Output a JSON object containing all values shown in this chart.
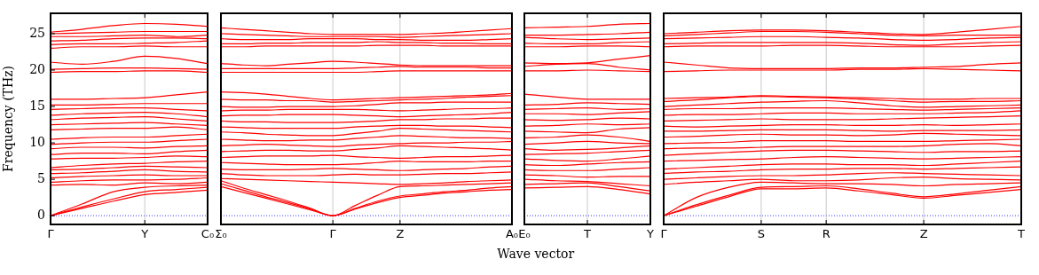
{
  "chart_data": [
    {
      "type": "line",
      "ylabel": "Frequency (THz)",
      "categories": [
        "Γ",
        null,
        null,
        "Y",
        null,
        "C₀"
      ],
      "ylim": [
        -1.2,
        27.8
      ],
      "yticks": [
        0,
        5,
        10,
        15,
        20,
        25
      ],
      "legend": false,
      "marker": "none",
      "line_style": "solid",
      "ref_lines": [
        {
          "axis": "y",
          "value": 0,
          "color": "#0000ff",
          "line_style": "dotted"
        },
        {
          "axis": "x",
          "value": "Y",
          "color": "#bbbbbb",
          "line_style": "solid"
        }
      ],
      "series": [
        {
          "color": "#ff0000",
          "values": [
            0,
            1.0,
            2.0,
            2.9,
            3.2,
            3.5
          ]
        },
        {
          "color": "#ff0000",
          "values": [
            0,
            1.2,
            2.3,
            3.3,
            3.6,
            3.9
          ]
        },
        {
          "color": "#ff0000",
          "values": [
            0,
            1.6,
            3.3,
            3.9,
            4.1,
            4.2
          ]
        },
        {
          "color": "#ff0000",
          "values": [
            4.2,
            4.3,
            4.2,
            4.5,
            4.4,
            4.6
          ]
        },
        {
          "color": "#ff0000",
          "values": [
            4.6,
            4.8,
            4.9,
            4.9,
            5.0,
            5.2
          ]
        },
        {
          "color": "#ff0000",
          "values": [
            5.2,
            5.4,
            5.5,
            5.6,
            5.5,
            5.5
          ]
        },
        {
          "color": "#ff0000",
          "values": [
            5.8,
            5.9,
            6.1,
            6.3,
            6.1,
            6.0
          ]
        },
        {
          "color": "#ff0000",
          "values": [
            6.3,
            6.4,
            6.6,
            6.8,
            6.7,
            6.6
          ]
        },
        {
          "color": "#ff0000",
          "values": [
            6.6,
            6.9,
            7.1,
            7.2,
            7.4,
            7.5
          ]
        },
        {
          "color": "#ff0000",
          "values": [
            7.8,
            7.9,
            7.9,
            8.0,
            8.2,
            8.1
          ]
        },
        {
          "color": "#ff0000",
          "values": [
            8.4,
            8.6,
            8.6,
            8.5,
            8.8,
            9.0
          ]
        },
        {
          "color": "#ff0000",
          "values": [
            9.2,
            9.4,
            9.4,
            9.3,
            9.5,
            9.6
          ]
        },
        {
          "color": "#ff0000",
          "values": [
            9.8,
            10.0,
            10.1,
            10.1,
            10.3,
            10.5
          ]
        },
        {
          "color": "#ff0000",
          "values": [
            10.5,
            10.7,
            10.8,
            10.8,
            11.0,
            11.2
          ]
        },
        {
          "color": "#ff0000",
          "values": [
            11.8,
            11.9,
            12.0,
            12.0,
            12.2,
            11.8
          ]
        },
        {
          "color": "#ff0000",
          "values": [
            12.5,
            12.6,
            12.7,
            12.8,
            12.6,
            12.4
          ]
        },
        {
          "color": "#ff0000",
          "values": [
            13.2,
            13.4,
            13.5,
            13.6,
            13.3,
            13.0
          ]
        },
        {
          "color": "#ff0000",
          "values": [
            13.8,
            14.0,
            14.1,
            14.2,
            14.0,
            13.6
          ]
        },
        {
          "color": "#ff0000",
          "values": [
            14.6,
            14.7,
            14.8,
            14.8,
            14.6,
            14.4
          ]
        },
        {
          "color": "#ff0000",
          "values": [
            15.2,
            15.2,
            15.3,
            15.4,
            15.4,
            15.4
          ]
        },
        {
          "color": "#ff0000",
          "values": [
            16.0,
            16.0,
            16.1,
            16.2,
            16.6,
            17.0
          ]
        },
        {
          "color": "#ff0000",
          "values": [
            19.7,
            19.8,
            19.8,
            19.9,
            19.9,
            19.7
          ]
        },
        {
          "color": "#ff0000",
          "values": [
            20.1,
            20.2,
            20.3,
            20.3,
            20.2,
            20.1
          ]
        },
        {
          "color": "#ff0000",
          "values": [
            21.1,
            20.8,
            21.2,
            21.9,
            21.6,
            20.9
          ]
        },
        {
          "color": "#ff0000",
          "values": [
            23.0,
            23.2,
            23.2,
            23.3,
            23.2,
            23.2
          ]
        },
        {
          "color": "#ff0000",
          "values": [
            23.5,
            23.6,
            23.6,
            23.7,
            23.8,
            24.0
          ]
        },
        {
          "color": "#ff0000",
          "values": [
            24.0,
            24.1,
            24.3,
            24.4,
            24.4,
            24.3
          ]
        },
        {
          "color": "#ff0000",
          "values": [
            24.6,
            24.6,
            24.7,
            24.8,
            24.6,
            24.8
          ]
        },
        {
          "color": "#ff0000",
          "values": [
            25.0,
            25.1,
            25.2,
            25.3,
            25.3,
            25.3
          ]
        },
        {
          "color": "#ff0000",
          "values": [
            25.2,
            25.6,
            26.1,
            26.4,
            26.3,
            26.0
          ]
        }
      ]
    },
    {
      "type": "line",
      "categories": [
        "Σ₀",
        null,
        null,
        null,
        null,
        "Γ",
        null,
        null,
        "Z",
        null,
        null,
        null,
        null,
        "A₀"
      ],
      "ylim": [
        -1.2,
        27.8
      ],
      "tick_labels": "x",
      "legend": false,
      "marker": "none",
      "line_style": "solid",
      "ref_lines": [
        {
          "axis": "y",
          "value": 0,
          "color": "#0000ff",
          "line_style": "dotted"
        },
        {
          "axis": "x",
          "value": "Γ",
          "color": "#bbbbbb",
          "line_style": "solid"
        },
        {
          "axis": "x",
          "value": "Z",
          "color": "#bbbbbb",
          "line_style": "solid"
        }
      ],
      "series": [
        {
          "color": "#ff0000",
          "values": [
            4.0,
            3.2,
            2.4,
            1.6,
            0.8,
            0,
            0.9,
            1.8,
            2.5,
            2.8,
            3.1,
            3.3,
            3.5,
            3.6
          ]
        },
        {
          "color": "#ff0000",
          "values": [
            4.4,
            3.5,
            2.6,
            1.8,
            0.9,
            0,
            1.0,
            2.0,
            2.7,
            3.0,
            3.3,
            3.5,
            3.8,
            4.0
          ]
        },
        {
          "color": "#ff0000",
          "values": [
            4.8,
            3.8,
            2.9,
            2.0,
            1.0,
            0,
            1.4,
            2.8,
            4.0,
            4.1,
            4.2,
            4.3,
            4.4,
            4.5
          ]
        },
        {
          "color": "#ff0000",
          "values": [
            5.1,
            5.0,
            4.9,
            4.8,
            4.7,
            4.6,
            4.5,
            4.4,
            4.3,
            4.4,
            4.5,
            4.7,
            4.8,
            4.9
          ]
        },
        {
          "color": "#ff0000",
          "values": [
            5.8,
            5.6,
            5.5,
            5.5,
            5.5,
            5.6,
            5.7,
            5.6,
            5.6,
            5.7,
            5.8,
            5.8,
            5.9,
            6.0
          ]
        },
        {
          "color": "#ff0000",
          "values": [
            6.4,
            6.3,
            6.3,
            6.3,
            6.4,
            6.5,
            6.4,
            6.3,
            6.2,
            6.3,
            6.4,
            6.5,
            6.7,
            6.8
          ]
        },
        {
          "color": "#ff0000",
          "values": [
            7.3,
            7.2,
            7.1,
            7.0,
            7.0,
            7.0,
            7.1,
            7.3,
            7.5,
            7.4,
            7.4,
            7.4,
            7.5,
            7.5
          ]
        },
        {
          "color": "#ff0000",
          "values": [
            8.0,
            8.1,
            8.2,
            8.2,
            8.2,
            8.3,
            8.1,
            8.0,
            7.9,
            8.0,
            8.1,
            8.1,
            8.2,
            8.3
          ]
        },
        {
          "color": "#ff0000",
          "values": [
            8.8,
            8.9,
            9.0,
            9.0,
            8.9,
            8.9,
            9.1,
            9.3,
            9.6,
            9.5,
            9.4,
            9.3,
            9.2,
            9.0
          ]
        },
        {
          "color": "#ff0000",
          "values": [
            9.6,
            9.7,
            9.8,
            9.7,
            9.6,
            9.5,
            9.7,
            9.8,
            9.9,
            10.0,
            10.0,
            10.1,
            10.1,
            10.2
          ]
        },
        {
          "color": "#ff0000",
          "values": [
            10.5,
            10.4,
            10.3,
            10.3,
            10.4,
            10.4,
            10.6,
            10.8,
            11.0,
            10.9,
            10.8,
            10.7,
            10.7,
            10.6
          ]
        },
        {
          "color": "#ff0000",
          "values": [
            11.5,
            11.4,
            11.2,
            11.1,
            11.0,
            11.0,
            11.3,
            11.6,
            12.0,
            11.9,
            11.8,
            11.7,
            11.6,
            11.5
          ]
        },
        {
          "color": "#ff0000",
          "values": [
            12.2,
            12.1,
            12.0,
            12.0,
            12.0,
            12.0,
            12.2,
            12.3,
            12.4,
            12.4,
            12.3,
            12.3,
            12.2,
            12.1
          ]
        },
        {
          "color": "#ff0000",
          "values": [
            13.0,
            12.9,
            12.9,
            12.8,
            12.8,
            12.8,
            12.9,
            13.0,
            13.2,
            13.2,
            13.3,
            13.3,
            13.4,
            13.4
          ]
        },
        {
          "color": "#ff0000",
          "values": [
            13.7,
            13.8,
            13.8,
            13.9,
            13.9,
            13.9,
            13.8,
            13.7,
            13.6,
            13.7,
            13.8,
            13.9,
            14.0,
            14.2
          ]
        },
        {
          "color": "#ff0000",
          "values": [
            14.4,
            14.5,
            14.5,
            14.6,
            14.6,
            14.6,
            14.6,
            14.5,
            14.4,
            14.5,
            14.6,
            14.7,
            14.7,
            14.8
          ]
        },
        {
          "color": "#ff0000",
          "values": [
            15.0,
            14.9,
            14.9,
            15.0,
            15.0,
            15.0,
            15.1,
            15.3,
            15.5,
            15.5,
            15.6,
            15.6,
            15.6,
            15.6
          ]
        },
        {
          "color": "#ff0000",
          "values": [
            16.0,
            15.9,
            15.9,
            15.8,
            15.8,
            15.6,
            15.7,
            15.8,
            15.9,
            16.0,
            16.1,
            16.3,
            16.4,
            16.5
          ]
        },
        {
          "color": "#ff0000",
          "values": [
            17.0,
            16.9,
            16.7,
            16.4,
            16.1,
            15.9,
            16.0,
            16.1,
            16.2,
            16.3,
            16.4,
            16.5,
            16.6,
            16.8
          ]
        },
        {
          "color": "#ff0000",
          "values": [
            19.7,
            19.7,
            19.7,
            19.7,
            19.7,
            19.7,
            19.7,
            19.8,
            19.9,
            19.9,
            19.9,
            19.9,
            19.9,
            19.9
          ]
        },
        {
          "color": "#ff0000",
          "values": [
            20.2,
            20.2,
            20.2,
            20.2,
            20.2,
            20.2,
            20.3,
            20.4,
            20.5,
            20.4,
            20.4,
            20.4,
            20.3,
            20.3
          ]
        },
        {
          "color": "#ff0000",
          "values": [
            20.9,
            20.7,
            20.6,
            20.8,
            21.0,
            21.2,
            21.1,
            20.9,
            20.7,
            20.6,
            20.6,
            20.6,
            20.6,
            20.6
          ]
        },
        {
          "color": "#ff0000",
          "values": [
            23.2,
            23.2,
            23.3,
            23.3,
            23.3,
            23.3,
            23.3,
            23.4,
            23.4,
            23.4,
            23.3,
            23.3,
            23.3,
            23.3
          ]
        },
        {
          "color": "#ff0000",
          "values": [
            23.6,
            23.6,
            23.7,
            23.7,
            23.8,
            23.8,
            23.8,
            23.9,
            23.8,
            23.8,
            23.7,
            23.7,
            23.6,
            23.6
          ]
        },
        {
          "color": "#ff0000",
          "values": [
            24.3,
            24.2,
            24.2,
            24.2,
            24.3,
            24.3,
            24.3,
            24.2,
            24.2,
            24.1,
            24.1,
            24.1,
            24.2,
            24.3
          ]
        },
        {
          "color": "#ff0000",
          "values": [
            25.0,
            24.9,
            24.8,
            24.7,
            24.6,
            24.6,
            24.6,
            24.6,
            24.5,
            24.6,
            24.7,
            24.8,
            24.9,
            25.0
          ]
        },
        {
          "color": "#ff0000",
          "values": [
            25.8,
            25.6,
            25.4,
            25.2,
            25.0,
            24.9,
            24.9,
            24.9,
            24.9,
            25.0,
            25.1,
            25.3,
            25.5,
            25.7
          ]
        }
      ]
    },
    {
      "type": "line",
      "xlabel": "Wave vector",
      "categories": [
        "E₀",
        null,
        "T",
        null,
        "Y"
      ],
      "ylim": [
        -1.2,
        27.8
      ],
      "tick_labels": "x",
      "legend": false,
      "marker": "none",
      "line_style": "solid",
      "ref_lines": [
        {
          "axis": "y",
          "value": 0,
          "color": "#0000ff",
          "line_style": "dotted"
        },
        {
          "axis": "x",
          "value": "T",
          "color": "#bbbbbb",
          "line_style": "solid"
        }
      ],
      "series": [
        {
          "color": "#ff0000",
          "values": [
            3.8,
            3.9,
            4.0,
            3.6,
            3.0
          ]
        },
        {
          "color": "#ff0000",
          "values": [
            4.3,
            4.4,
            4.5,
            4.0,
            3.4
          ]
        },
        {
          "color": "#ff0000",
          "values": [
            5.0,
            4.8,
            4.7,
            4.4,
            4.1
          ]
        },
        {
          "color": "#ff0000",
          "values": [
            5.6,
            5.5,
            5.3,
            5.4,
            5.4
          ]
        },
        {
          "color": "#ff0000",
          "values": [
            6.3,
            6.2,
            6.2,
            6.4,
            6.6
          ]
        },
        {
          "color": "#ff0000",
          "values": [
            7.0,
            6.9,
            7.1,
            7.3,
            7.4
          ]
        },
        {
          "color": "#ff0000",
          "values": [
            7.8,
            7.6,
            7.5,
            7.8,
            8.2
          ]
        },
        {
          "color": "#ff0000",
          "values": [
            8.4,
            8.5,
            8.6,
            8.8,
            9.0
          ]
        },
        {
          "color": "#ff0000",
          "values": [
            9.2,
            9.0,
            9.1,
            9.3,
            9.6
          ]
        },
        {
          "color": "#ff0000",
          "values": [
            9.8,
            10.0,
            10.2,
            10.0,
            9.9
          ]
        },
        {
          "color": "#ff0000",
          "values": [
            10.7,
            10.8,
            11.1,
            10.8,
            10.2
          ]
        },
        {
          "color": "#ff0000",
          "values": [
            11.6,
            11.5,
            11.4,
            11.9,
            12.1
          ]
        },
        {
          "color": "#ff0000",
          "values": [
            12.3,
            12.4,
            12.6,
            12.5,
            12.6
          ]
        },
        {
          "color": "#ff0000",
          "values": [
            13.2,
            13.1,
            13.2,
            13.4,
            13.3
          ]
        },
        {
          "color": "#ff0000",
          "values": [
            14.0,
            14.0,
            13.9,
            14.1,
            14.3
          ]
        },
        {
          "color": "#ff0000",
          "values": [
            14.6,
            14.7,
            14.8,
            14.6,
            14.7
          ]
        },
        {
          "color": "#ff0000",
          "values": [
            15.2,
            15.3,
            15.5,
            15.4,
            15.3
          ]
        },
        {
          "color": "#ff0000",
          "values": [
            16.7,
            16.3,
            16.0,
            16.0,
            16.0
          ]
        },
        {
          "color": "#ff0000",
          "values": [
            19.9,
            19.9,
            20.0,
            19.9,
            19.8
          ]
        },
        {
          "color": "#ff0000",
          "values": [
            20.5,
            20.8,
            20.9,
            20.4,
            20.0
          ]
        },
        {
          "color": "#ff0000",
          "values": [
            21.0,
            20.9,
            21.0,
            21.5,
            22.0
          ]
        },
        {
          "color": "#ff0000",
          "values": [
            23.2,
            23.2,
            23.3,
            23.3,
            23.2
          ]
        },
        {
          "color": "#ff0000",
          "values": [
            23.7,
            23.6,
            23.6,
            23.8,
            23.9
          ]
        },
        {
          "color": "#ff0000",
          "values": [
            24.5,
            24.3,
            24.2,
            24.3,
            24.4
          ]
        },
        {
          "color": "#ff0000",
          "values": [
            24.8,
            24.8,
            24.9,
            25.0,
            25.2
          ]
        },
        {
          "color": "#ff0000",
          "values": [
            25.8,
            25.9,
            26.0,
            26.3,
            26.4
          ]
        }
      ]
    },
    {
      "type": "line",
      "categories": [
        "Γ",
        null,
        null,
        "S",
        null,
        "R",
        null,
        null,
        "Z",
        null,
        null,
        "T"
      ],
      "ylim": [
        -1.2,
        27.8
      ],
      "tick_labels": "x",
      "legend": false,
      "marker": "none",
      "line_style": "solid",
      "ref_lines": [
        {
          "axis": "y",
          "value": 0,
          "color": "#0000ff",
          "line_style": "dotted"
        },
        {
          "axis": "x",
          "value": "S",
          "color": "#bbbbbb",
          "line_style": "solid"
        },
        {
          "axis": "x",
          "value": "R",
          "color": "#bbbbbb",
          "line_style": "solid"
        },
        {
          "axis": "x",
          "value": "Z",
          "color": "#bbbbbb",
          "line_style": "solid"
        }
      ],
      "series": [
        {
          "color": "#ff0000",
          "values": [
            0,
            1.3,
            2.6,
            3.7,
            3.7,
            3.8,
            3.4,
            2.9,
            2.4,
            2.8,
            3.2,
            3.6
          ]
        },
        {
          "color": "#ff0000",
          "values": [
            0,
            1.5,
            2.8,
            3.9,
            4.0,
            4.1,
            3.7,
            3.1,
            2.6,
            3.0,
            3.5,
            4.0
          ]
        },
        {
          "color": "#ff0000",
          "values": [
            0,
            2.5,
            3.9,
            4.6,
            4.5,
            4.4,
            4.4,
            4.3,
            4.1,
            4.3,
            4.4,
            4.5
          ]
        },
        {
          "color": "#ff0000",
          "values": [
            4.3,
            4.6,
            4.8,
            5.0,
            4.8,
            4.8,
            4.9,
            5.2,
            5.3,
            5.1,
            5.0,
            4.9
          ]
        },
        {
          "color": "#ff0000",
          "values": [
            5.0,
            5.2,
            5.4,
            5.5,
            5.5,
            5.6,
            5.8,
            5.9,
            5.8,
            5.7,
            5.6,
            5.5
          ]
        },
        {
          "color": "#ff0000",
          "values": [
            5.8,
            6.0,
            6.1,
            6.3,
            6.4,
            6.4,
            6.5,
            6.5,
            6.4,
            6.5,
            6.6,
            6.7
          ]
        },
        {
          "color": "#ff0000",
          "values": [
            6.4,
            6.6,
            6.8,
            7.0,
            7.1,
            7.1,
            7.0,
            7.0,
            6.9,
            7.1,
            7.3,
            7.5
          ]
        },
        {
          "color": "#ff0000",
          "values": [
            7.5,
            7.6,
            7.7,
            7.8,
            8.0,
            8.1,
            8.0,
            7.9,
            7.8,
            7.9,
            8.0,
            8.1
          ]
        },
        {
          "color": "#ff0000",
          "values": [
            8.3,
            8.5,
            8.7,
            8.9,
            9.0,
            9.0,
            8.9,
            8.8,
            8.7,
            8.8,
            8.8,
            8.9
          ]
        },
        {
          "color": "#ff0000",
          "values": [
            9.2,
            9.3,
            9.3,
            9.4,
            9.5,
            9.5,
            9.5,
            9.5,
            9.6,
            9.8,
            9.9,
            9.6
          ]
        },
        {
          "color": "#ff0000",
          "values": [
            9.9,
            10.0,
            10.1,
            10.3,
            10.3,
            10.3,
            10.2,
            10.2,
            10.2,
            10.3,
            10.4,
            10.5
          ]
        },
        {
          "color": "#ff0000",
          "values": [
            10.8,
            10.9,
            11.1,
            11.2,
            11.1,
            11.1,
            11.0,
            11.1,
            11.3,
            11.2,
            11.1,
            11.0
          ]
        },
        {
          "color": "#ff0000",
          "values": [
            11.6,
            11.6,
            11.7,
            11.8,
            11.8,
            11.8,
            11.7,
            11.6,
            11.7,
            11.7,
            11.7,
            11.8
          ]
        },
        {
          "color": "#ff0000",
          "values": [
            12.3,
            12.2,
            12.3,
            12.4,
            12.5,
            12.5,
            12.4,
            12.4,
            12.5,
            12.4,
            12.5,
            12.6
          ]
        },
        {
          "color": "#ff0000",
          "values": [
            13.0,
            13.1,
            13.2,
            13.3,
            13.2,
            13.2,
            13.2,
            13.3,
            13.4,
            13.5,
            13.6,
            13.7
          ]
        },
        {
          "color": "#ff0000",
          "values": [
            13.8,
            13.9,
            13.9,
            14.0,
            14.1,
            14.1,
            14.0,
            14.0,
            14.0,
            14.1,
            14.2,
            14.4
          ]
        },
        {
          "color": "#ff0000",
          "values": [
            14.6,
            14.7,
            14.7,
            14.8,
            14.8,
            14.8,
            14.7,
            14.6,
            14.5,
            14.6,
            14.7,
            14.8
          ]
        },
        {
          "color": "#ff0000",
          "values": [
            15.0,
            15.2,
            15.4,
            15.6,
            15.7,
            15.8,
            15.5,
            15.1,
            14.9,
            15.0,
            15.1,
            15.2
          ]
        },
        {
          "color": "#ff0000",
          "values": [
            15.7,
            15.9,
            16.2,
            16.4,
            16.3,
            16.2,
            16.0,
            15.8,
            15.6,
            15.7,
            15.7,
            15.8
          ]
        },
        {
          "color": "#ff0000",
          "values": [
            16.1,
            16.2,
            16.3,
            16.5,
            16.4,
            16.3,
            16.2,
            16.1,
            16.0,
            16.0,
            16.1,
            16.1
          ]
        },
        {
          "color": "#ff0000",
          "values": [
            19.8,
            19.9,
            20.0,
            20.0,
            20.0,
            20.0,
            20.1,
            20.1,
            20.2,
            20.1,
            20.0,
            19.9
          ]
        },
        {
          "color": "#ff0000",
          "values": [
            21.1,
            20.7,
            20.3,
            20.2,
            20.2,
            20.2,
            20.3,
            20.3,
            20.4,
            20.5,
            20.8,
            21.0
          ]
        },
        {
          "color": "#ff0000",
          "values": [
            23.2,
            23.3,
            23.3,
            23.3,
            23.4,
            23.4,
            23.3,
            23.2,
            23.2,
            23.2,
            23.3,
            23.4
          ]
        },
        {
          "color": "#ff0000",
          "values": [
            23.6,
            23.7,
            23.8,
            23.8,
            23.8,
            23.8,
            23.7,
            23.5,
            23.4,
            23.6,
            23.8,
            23.9
          ]
        },
        {
          "color": "#ff0000",
          "values": [
            24.3,
            24.4,
            24.5,
            24.6,
            24.6,
            24.5,
            24.4,
            24.2,
            24.1,
            24.2,
            24.4,
            24.5
          ]
        },
        {
          "color": "#ff0000",
          "values": [
            24.7,
            24.9,
            25.1,
            25.3,
            25.3,
            25.2,
            25.0,
            24.8,
            24.7,
            24.8,
            24.8,
            24.8
          ]
        },
        {
          "color": "#ff0000",
          "values": [
            25.0,
            25.2,
            25.4,
            25.5,
            25.5,
            25.4,
            25.2,
            25.0,
            24.9,
            25.2,
            25.6,
            26.0
          ]
        }
      ]
    }
  ]
}
